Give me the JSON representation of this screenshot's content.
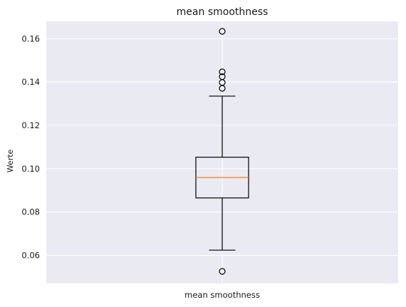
{
  "chart_data": {
    "type": "boxplot",
    "title": "mean smoothness",
    "xlabel": "",
    "ylabel": "Werte",
    "categories": [
      "mean smoothness"
    ],
    "ylim": [
      0.047,
      0.168
    ],
    "yticks": [
      0.06,
      0.08,
      0.1,
      0.12,
      0.14,
      0.16
    ],
    "ytick_labels": [
      "0.06",
      "0.08",
      "0.10",
      "0.12",
      "0.14",
      "0.16"
    ],
    "grid": true,
    "box": {
      "whisker_low": 0.0624,
      "q1": 0.0865,
      "median": 0.0959,
      "q3": 0.1053,
      "whisker_high": 0.1335,
      "outliers": [
        0.0526,
        0.1371,
        0.1398,
        0.1425,
        0.1447,
        0.1634
      ]
    },
    "colors": {
      "plot_background": "#eaeaf2",
      "grid": "#ffffff",
      "box": "#000000",
      "median": "#ff7f0e"
    }
  }
}
